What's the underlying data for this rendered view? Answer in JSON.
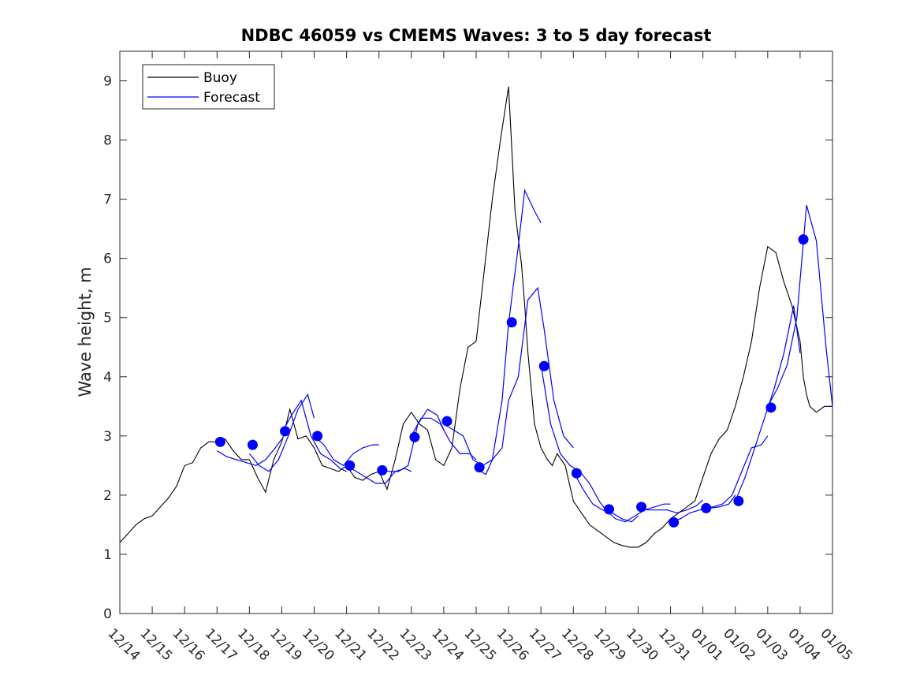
{
  "chart_data": {
    "type": "line",
    "title": "NDBC 46059 vs CMEMS Waves: 3 to 5 day forecast",
    "xlabel": "",
    "ylabel": "Wave height, m",
    "xlim": [
      0,
      22
    ],
    "ylim": [
      0,
      9.5
    ],
    "x_tick_labels": [
      "12/14",
      "12/15",
      "12/16",
      "12/17",
      "12/18",
      "12/19",
      "12/20",
      "12/21",
      "12/22",
      "12/23",
      "12/24",
      "12/25",
      "12/26",
      "12/27",
      "12/28",
      "12/29",
      "12/30",
      "12/31",
      "01/01",
      "01/02",
      "01/03",
      "01/04",
      "01/05"
    ],
    "y_ticks": [
      0,
      1,
      2,
      3,
      4,
      5,
      6,
      7,
      8,
      9
    ],
    "legend": {
      "location": "top-left",
      "entries": [
        "Buoy",
        "Forecast"
      ]
    },
    "series": [
      {
        "name": "Buoy",
        "color": "#000000",
        "x": [
          0,
          0.25,
          0.5,
          0.75,
          1,
          1.25,
          1.5,
          1.75,
          2,
          2.25,
          2.5,
          2.75,
          3,
          3.25,
          3.5,
          3.75,
          4,
          4.25,
          4.5,
          4.75,
          5,
          5.25,
          5.5,
          5.75,
          6,
          6.25,
          6.5,
          6.75,
          7,
          7.25,
          7.5,
          7.75,
          8,
          8.25,
          8.5,
          8.75,
          9,
          9.25,
          9.5,
          9.75,
          10,
          10.25,
          10.5,
          10.75,
          11,
          11.25,
          11.5,
          11.75,
          12,
          12.2,
          12.4,
          12.5,
          12.6,
          12.7,
          12.8,
          12.9,
          13,
          13.1,
          13.2,
          13.35,
          13.5,
          13.75,
          14,
          14.25,
          14.5,
          14.75,
          15,
          15.25,
          15.5,
          15.75,
          16,
          16.25,
          16.5,
          16.75,
          17,
          17.25,
          17.5,
          17.75,
          18,
          18.25,
          18.5,
          18.75,
          19,
          19.25,
          19.5,
          19.75,
          20,
          20.25,
          20.5,
          20.75,
          21,
          21.1,
          21.2,
          21.3,
          21.5,
          21.75,
          22
        ],
        "y": [
          1.2,
          1.35,
          1.5,
          1.6,
          1.65,
          1.8,
          1.95,
          2.15,
          2.5,
          2.55,
          2.8,
          2.9,
          2.9,
          2.95,
          2.75,
          2.6,
          2.6,
          2.3,
          2.05,
          2.6,
          2.9,
          3.45,
          2.95,
          3.0,
          2.8,
          2.5,
          2.45,
          2.4,
          2.5,
          2.3,
          2.25,
          2.35,
          2.4,
          2.1,
          2.6,
          3.2,
          3.4,
          3.2,
          3.1,
          2.6,
          2.5,
          2.8,
          3.8,
          4.5,
          4.6,
          5.8,
          7.0,
          8.0,
          8.9,
          6.8,
          5.9,
          5.2,
          4.4,
          3.8,
          3.2,
          3.0,
          2.8,
          2.7,
          2.6,
          2.5,
          2.7,
          2.5,
          1.9,
          1.7,
          1.5,
          1.4,
          1.3,
          1.2,
          1.15,
          1.12,
          1.12,
          1.2,
          1.35,
          1.45,
          1.6,
          1.7,
          1.8,
          1.9,
          2.3,
          2.7,
          2.95,
          3.1,
          3.5,
          4.0,
          4.6,
          5.5,
          6.2,
          6.1,
          5.6,
          5.2,
          4.6,
          4.0,
          3.7,
          3.5,
          3.4,
          3.5,
          3.5
        ]
      },
      {
        "name": "Forecast",
        "color": "#0000ff",
        "segments": [
          {
            "x": [
              3,
              3.3,
              3.6,
              3.9,
              4.2,
              4.5,
              4.8,
              5
            ],
            "y": [
              2.75,
              2.65,
              2.6,
              2.55,
              2.5,
              2.6,
              2.8,
              2.95
            ]
          },
          {
            "x": [
              4,
              4.3,
              4.6,
              4.9,
              5.2,
              5.5,
              5.8,
              6
            ],
            "y": [
              2.7,
              2.5,
              2.4,
              2.6,
              3.0,
              3.45,
              3.7,
              3.3
            ]
          },
          {
            "x": [
              5,
              5.3,
              5.6,
              5.9,
              6.2,
              6.5,
              6.8,
              7
            ],
            "y": [
              3.05,
              3.35,
              3.6,
              3.0,
              2.7,
              2.6,
              2.45,
              2.4
            ]
          },
          {
            "x": [
              6,
              6.3,
              6.6,
              6.9,
              7.2,
              7.5,
              7.8,
              8
            ],
            "y": [
              3.0,
              2.85,
              2.6,
              2.5,
              2.7,
              2.8,
              2.85,
              2.85
            ]
          },
          {
            "x": [
              7,
              7.3,
              7.6,
              7.9,
              8.2,
              8.5,
              8.8,
              9
            ],
            "y": [
              2.5,
              2.4,
              2.3,
              2.2,
              2.2,
              2.4,
              2.45,
              2.4
            ]
          },
          {
            "x": [
              8,
              8.3,
              8.6,
              8.9,
              9.2,
              9.5,
              9.8,
              10
            ],
            "y": [
              2.45,
              2.4,
              2.4,
              2.5,
              3.2,
              3.45,
              3.35,
              3.1
            ]
          },
          {
            "x": [
              9,
              9.3,
              9.6,
              9.9,
              10.2,
              10.5,
              10.8,
              11
            ],
            "y": [
              3.0,
              3.3,
              3.3,
              3.2,
              2.9,
              2.7,
              2.7,
              2.6
            ]
          },
          {
            "x": [
              10,
              10.3,
              10.6,
              10.9,
              11.2,
              11.5,
              11.8,
              12
            ],
            "y": [
              3.2,
              3.1,
              3.0,
              2.6,
              2.5,
              2.6,
              2.8,
              3.6
            ]
          },
          {
            "x": [
              11,
              11.3,
              11.5,
              11.8,
              12,
              12.3,
              12.5,
              12.8,
              13
            ],
            "y": [
              2.45,
              2.35,
              2.6,
              3.6,
              4.9,
              6.2,
              7.15,
              6.8,
              6.6
            ]
          },
          {
            "x": [
              12,
              12.3,
              12.6,
              12.9,
              13.1,
              13.4,
              13.7,
              14
            ],
            "y": [
              3.6,
              4.0,
              5.3,
              5.5,
              4.8,
              3.6,
              3.0,
              2.8
            ]
          },
          {
            "x": [
              13,
              13.3,
              13.6,
              13.9,
              14.2,
              14.5,
              14.8,
              15
            ],
            "y": [
              4.2,
              3.2,
              2.7,
              2.5,
              2.4,
              2.2,
              1.9,
              1.75
            ]
          },
          {
            "x": [
              14,
              14.3,
              14.6,
              14.9,
              15.2,
              15.5,
              15.8,
              16
            ],
            "y": [
              2.4,
              2.1,
              1.85,
              1.75,
              1.7,
              1.6,
              1.55,
              1.65
            ]
          },
          {
            "x": [
              15,
              15.3,
              15.6,
              15.9,
              16.2,
              16.5,
              16.8,
              17
            ],
            "y": [
              1.75,
              1.6,
              1.55,
              1.65,
              1.75,
              1.8,
              1.85,
              1.85
            ]
          },
          {
            "x": [
              16,
              16.3,
              16.6,
              16.9,
              17.2,
              17.5,
              17.8,
              18
            ],
            "y": [
              1.8,
              1.75,
              1.75,
              1.75,
              1.7,
              1.75,
              1.82,
              1.92
            ]
          },
          {
            "x": [
              17,
              17.3,
              17.6,
              17.9,
              18.2,
              18.5,
              18.8,
              19
            ],
            "y": [
              1.55,
              1.6,
              1.7,
              1.75,
              1.78,
              1.8,
              1.85,
              2.0
            ]
          },
          {
            "x": [
              18,
              18.3,
              18.6,
              18.9,
              19.2,
              19.5,
              19.8,
              20
            ],
            "y": [
              1.78,
              1.8,
              1.85,
              2.0,
              2.4,
              2.8,
              2.85,
              3.0
            ]
          },
          {
            "x": [
              19,
              19.3,
              19.6,
              19.9,
              20.2,
              20.5,
              20.8,
              21
            ],
            "y": [
              1.9,
              2.3,
              2.8,
              3.3,
              3.8,
              4.4,
              5.2,
              4.4
            ]
          },
          {
            "x": [
              20,
              20.3,
              20.6,
              20.9,
              21.2,
              21.5,
              21.8,
              22
            ],
            "y": [
              3.5,
              3.8,
              4.2,
              5.0,
              6.9,
              6.3,
              4.5,
              3.5
            ]
          }
        ],
        "markers": {
          "x": [
            3.1,
            4.1,
            5.1,
            6.1,
            7.1,
            8.1,
            9.1,
            10.1,
            11.1,
            12.1,
            13.1,
            14.1,
            15.1,
            16.1,
            17.1,
            18.1,
            19.1,
            20.1,
            21.1
          ],
          "y": [
            2.9,
            2.85,
            3.08,
            3.0,
            2.5,
            2.42,
            2.98,
            3.25,
            2.47,
            4.92,
            4.18,
            2.37,
            1.76,
            1.8,
            1.54,
            1.78,
            1.9,
            3.48,
            6.32
          ]
        }
      }
    ]
  }
}
